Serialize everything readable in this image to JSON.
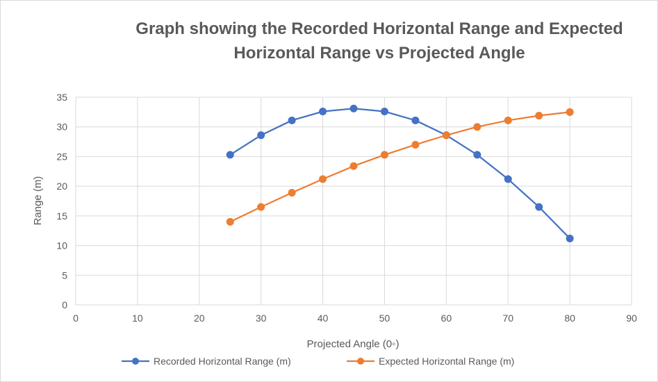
{
  "chart_data": {
    "type": "line",
    "title_lines": [
      "Graph  showing the Recorded Horizontal Range and Expected",
      "Horizontal Range vs Projected Angle"
    ],
    "xlabel": "Projected Angle (0◦)",
    "ylabel": "Range (m)",
    "xlim": [
      0,
      90
    ],
    "ylim": [
      0,
      35
    ],
    "x_ticks": [
      0,
      10,
      20,
      30,
      40,
      50,
      60,
      70,
      80,
      90
    ],
    "y_ticks": [
      0,
      5,
      10,
      15,
      20,
      25,
      30,
      35
    ],
    "grid": true,
    "legend_position": "bottom",
    "series": [
      {
        "name": "Recorded Horizontal Range (m)",
        "color": "#4472c4",
        "x": [
          25,
          30,
          35,
          40,
          45,
          50,
          55,
          60,
          65,
          70,
          75,
          80
        ],
        "y": [
          25.3,
          28.6,
          31.1,
          32.6,
          33.1,
          32.6,
          31.1,
          28.6,
          25.3,
          21.2,
          16.5,
          11.2
        ]
      },
      {
        "name": "Expected Horizontal Range (m)",
        "color": "#ed7d31",
        "x": [
          25,
          30,
          35,
          40,
          45,
          50,
          55,
          60,
          65,
          70,
          75,
          80
        ],
        "y": [
          14.0,
          16.5,
          18.9,
          21.2,
          23.4,
          25.3,
          27.0,
          28.6,
          30.0,
          31.1,
          31.9,
          32.5
        ]
      }
    ]
  }
}
